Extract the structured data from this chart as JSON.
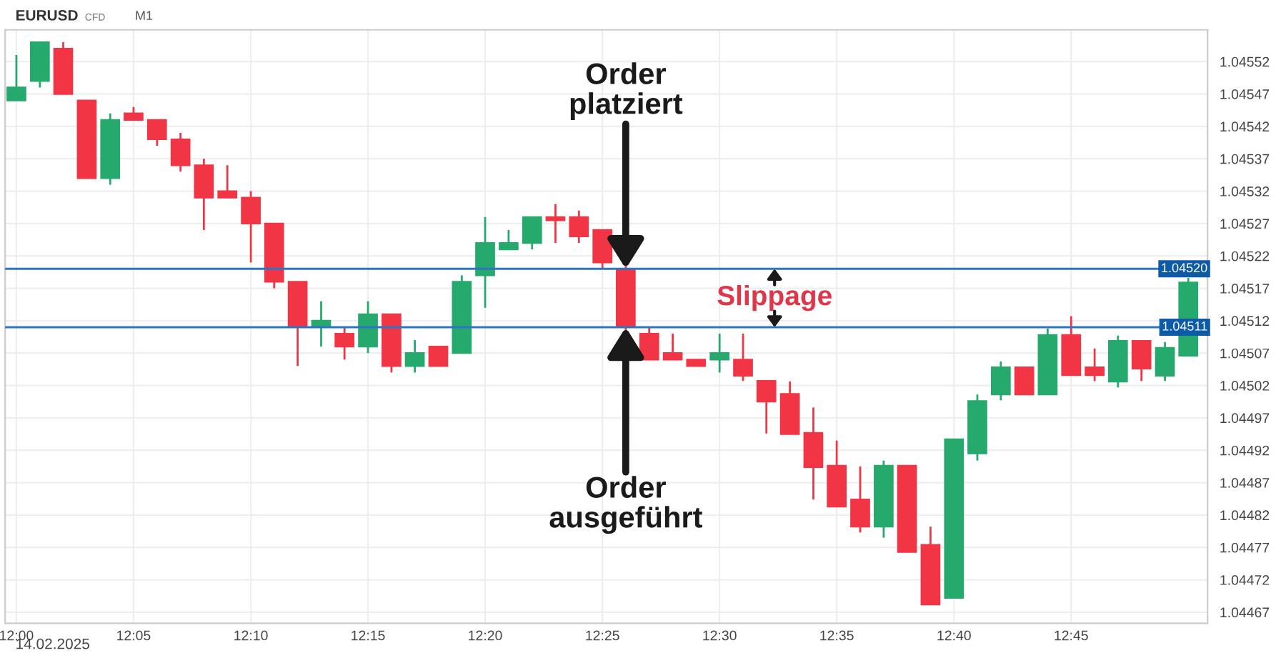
{
  "chart_data": {
    "type": "candlestick",
    "title": "EURUSD",
    "subtitle": "CFD",
    "annotations": [
      "M1",
      "14.02.2025",
      {
        "text": "Order\nplatziert",
        "x": 12.4333,
        "y": 1.0452
      },
      {
        "text": "Order\nausgeführt",
        "x": 12.4333,
        "y": 1.04511
      },
      "Slippage"
    ],
    "x": [
      12.0,
      12.0167,
      12.0333,
      12.05,
      12.0667,
      12.0833,
      12.1,
      12.1167,
      12.1333,
      12.15,
      12.1667,
      12.1833,
      12.2,
      12.2167,
      12.2333,
      12.25,
      12.2667,
      12.2833,
      12.3,
      12.3167,
      12.3333,
      12.35,
      12.3667,
      12.3833,
      12.4,
      12.4167,
      12.4333,
      12.45,
      12.4667,
      12.4833,
      12.5,
      12.5167,
      12.5333,
      12.55,
      12.5667,
      12.5833,
      12.6,
      12.6167,
      12.6333,
      12.65,
      12.6667,
      12.6833,
      12.7,
      12.7167,
      12.7333,
      12.75,
      12.7667,
      12.7833,
      12.8,
      12.8167,
      12.8333
    ],
    "ohlc": [
      [
        1.04546,
        1.04553,
        1.04546,
        1.04548
      ],
      [
        1.04549,
        1.04555,
        1.04548,
        1.04555
      ],
      [
        1.04554,
        1.04555,
        1.04547,
        1.04547
      ],
      [
        1.04546,
        1.04546,
        1.04534,
        1.04534
      ],
      [
        1.04534,
        1.04544,
        1.04533,
        1.04543
      ],
      [
        1.04544,
        1.04545,
        1.04543,
        1.04543
      ],
      [
        1.04543,
        1.04543,
        1.04539,
        1.0454
      ],
      [
        1.0454,
        1.04541,
        1.04535,
        1.04536
      ],
      [
        1.04536,
        1.04537,
        1.04526,
        1.04531
      ],
      [
        1.04532,
        1.04536,
        1.04531,
        1.04531
      ],
      [
        1.04531,
        1.04532,
        1.04521,
        1.04527
      ],
      [
        1.04527,
        1.04527,
        1.04517,
        1.04518
      ],
      [
        1.04518,
        1.04518,
        1.04505,
        1.04511
      ],
      [
        1.04511,
        1.04515,
        1.04508,
        1.04512
      ],
      [
        1.0451,
        1.04511,
        1.04506,
        1.04508
      ],
      [
        1.04508,
        1.04515,
        1.04507,
        1.04513
      ],
      [
        1.04513,
        1.04513,
        1.04504,
        1.04505
      ],
      [
        1.04505,
        1.04509,
        1.04504,
        1.04507
      ],
      [
        1.04508,
        1.04508,
        1.04505,
        1.04505
      ],
      [
        1.04507,
        1.04519,
        1.04507,
        1.04518
      ],
      [
        1.04519,
        1.04528,
        1.04514,
        1.04524
      ],
      [
        1.04523,
        1.04526,
        1.04523,
        1.04524
      ],
      [
        1.04524,
        1.04528,
        1.04523,
        1.04528
      ],
      [
        1.04528,
        1.0453,
        1.04524,
        1.045275
      ],
      [
        1.04528,
        1.04529,
        1.04524,
        1.04525
      ],
      [
        1.04526,
        1.04526,
        1.0452,
        1.04521
      ],
      [
        1.0452,
        1.04521,
        1.0451,
        1.04511
      ],
      [
        1.0451,
        1.04511,
        1.04506,
        1.04506
      ],
      [
        1.04507,
        1.0451,
        1.04506,
        1.04506
      ],
      [
        1.04506,
        1.04506,
        1.04505,
        1.04505
      ],
      [
        1.04506,
        1.0451,
        1.04504,
        1.04507
      ],
      [
        1.04506,
        1.0451,
        1.045027,
        1.045035
      ],
      [
        1.045027,
        1.045027,
        1.044946,
        1.044995
      ],
      [
        1.045007,
        1.045026,
        1.044945,
        1.044945
      ],
      [
        1.044947,
        1.044986,
        1.044844,
        1.044894
      ],
      [
        1.044896,
        1.044935,
        1.044833,
        1.044833
      ],
      [
        1.044844,
        1.044895,
        1.044793,
        1.044802
      ],
      [
        1.044802,
        1.044904,
        1.044785,
        1.044896
      ],
      [
        1.044896,
        1.044896,
        1.044763,
        1.044763
      ],
      [
        1.044774,
        1.044802,
        1.044682,
        1.044682
      ],
      [
        1.044692,
        1.044937,
        1.044692,
        1.044937
      ],
      [
        1.044915,
        1.045006,
        1.044904,
        1.044996
      ],
      [
        1.045006,
        1.045057,
        1.044997,
        1.045048
      ],
      [
        1.045048,
        1.045048,
        1.045006,
        1.045006
      ],
      [
        1.045006,
        1.045108,
        1.045006,
        1.045098
      ],
      [
        1.045098,
        1.045127,
        1.045036,
        1.045036
      ],
      [
        1.045048,
        1.045077,
        1.045027,
        1.045036
      ],
      [
        1.045026,
        1.045097,
        1.045017,
        1.045089
      ],
      [
        1.045089,
        1.045089,
        1.045027,
        1.045046
      ],
      [
        1.045035,
        1.045087,
        1.045027,
        1.045078
      ],
      [
        1.045066,
        1.045186,
        1.045066,
        1.045179
      ]
    ],
    "colors": [
      "#26a96c",
      "#26a96c",
      "#f23545",
      "#f23545",
      "#26a96c",
      "#f23545",
      "#f23545",
      "#f23545",
      "#f23545",
      "#f23545",
      "#f23545",
      "#f23545",
      "#f23545",
      "#26a96c",
      "#f23545",
      "#26a96c",
      "#f23545",
      "#26a96c",
      "#f23545",
      "#26a96c",
      "#26a96c",
      "#26a96c",
      "#26a96c",
      "#f23545",
      "#f23545",
      "#f23545",
      "#f23545",
      "#f23545",
      "#f23545",
      "#f23545",
      "#26a96c",
      "#f23545",
      "#f23545",
      "#f23545",
      "#f23545",
      "#f23545",
      "#f23545",
      "#26a96c",
      "#f23545",
      "#f23545",
      "#26a96c",
      "#26a96c",
      "#26a96c",
      "#f23545",
      "#26a96c",
      "#f23545",
      "#f23545",
      "#26a96c",
      "#f23545",
      "#26a96c",
      "#26a96c"
    ],
    "xlim": [
      11.992,
      12.847
    ],
    "xticks": [
      {
        "value": 12.0,
        "label": "12:00"
      },
      {
        "value": 12.0833,
        "label": "12:05"
      },
      {
        "value": 12.1667,
        "label": "12:10"
      },
      {
        "value": 12.25,
        "label": "12:15"
      },
      {
        "value": 12.3333,
        "label": "12:20"
      },
      {
        "value": 12.4167,
        "label": "12:25"
      },
      {
        "value": 12.5,
        "label": "12:30"
      },
      {
        "value": 12.5833,
        "label": "12:35"
      },
      {
        "value": 12.6667,
        "label": "12:40"
      },
      {
        "value": 12.75,
        "label": "12:45"
      }
    ],
    "ylim": [
      1.044653,
      1.045569
    ],
    "yticks": [
      1.04467,
      1.04472,
      1.04477,
      1.04482,
      1.04487,
      1.04492,
      1.04497,
      1.04502,
      1.04507,
      1.04512,
      1.04517,
      1.04522,
      1.04527,
      1.04532,
      1.04537,
      1.04542,
      1.04547,
      1.04552
    ],
    "ref_lines": [
      {
        "axis": "y",
        "value": 1.0452,
        "label": "1.04520",
        "color": "#2f74c0"
      },
      {
        "axis": "y",
        "value": 1.04511,
        "label": "1.04511",
        "color": "#2f74c0"
      }
    ],
    "grid": true,
    "legend": false
  }
}
